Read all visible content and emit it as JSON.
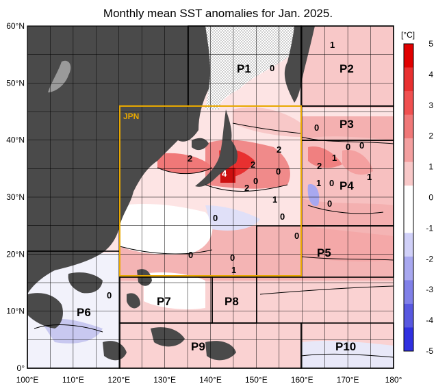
{
  "title": "Monthly mean SST anomalies for Jan. 2025.",
  "colors": {
    "land": "#4a4a4a",
    "grid": "#000000",
    "jpn_box": "#e8a800",
    "warm_strong": "#e02020",
    "warm_mid": "#f08080",
    "warm_light": "#f8c8c8",
    "neutral": "#ffffff",
    "cool_light": "#c8c8f0",
    "cool_mid": "#8080e0",
    "cool_strong": "#2020e0"
  },
  "axes": {
    "lon_ticks": [
      "100°E",
      "110°E",
      "120°E",
      "130°E",
      "140°E",
      "150°E",
      "160°E",
      "170°E",
      "180°"
    ],
    "lat_ticks": [
      "0°",
      "10°N",
      "20°N",
      "30°N",
      "40°N",
      "50°N",
      "60°N"
    ]
  },
  "colorbar": {
    "unit": "[°C]",
    "labels": [
      "5",
      "4",
      "3",
      "2",
      "1",
      "0",
      "-1",
      "-2",
      "-3",
      "-4",
      "-5"
    ],
    "colors": [
      "#e00000",
      "#e83030",
      "#f05050",
      "#f07878",
      "#f4a0a0",
      "#f8c8c8",
      "#ffffff",
      "#ffffff",
      "#d0d0f8",
      "#a8a8f0",
      "#8080e8",
      "#5858e0",
      "#3030e0"
    ]
  },
  "regions": {
    "jpn": "JPN",
    "p1": "P1",
    "p2": "P2",
    "p3": "P3",
    "p4": "P4",
    "p5": "P5",
    "p6": "P6",
    "p7": "P7",
    "p8": "P8",
    "p9": "P9",
    "p10": "P10"
  },
  "contour_labels": [
    "1",
    "0",
    "0",
    "0",
    "2",
    "4",
    "2",
    "2",
    "2",
    "0",
    "2",
    "0",
    "1",
    "1",
    "0",
    "0",
    "1",
    "0",
    "1",
    "0",
    "0",
    "0",
    "0",
    "0",
    "1",
    "0"
  ]
}
